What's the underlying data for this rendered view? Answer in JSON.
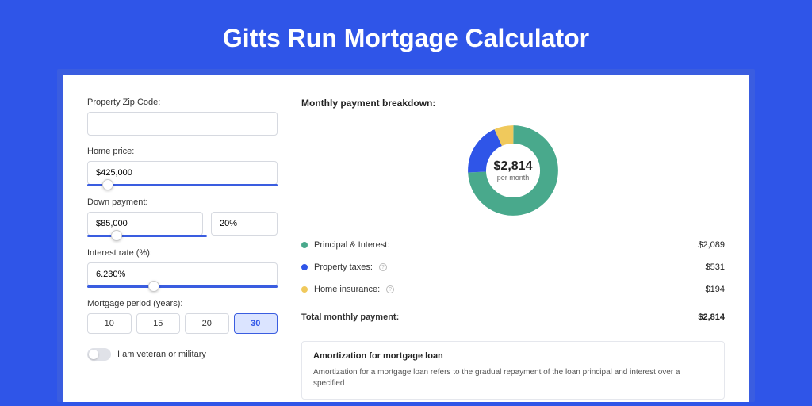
{
  "page": {
    "title": "Gitts Run Mortgage Calculator",
    "background_color": "#2f55e8",
    "shadow_color": "#3a5de0",
    "card_background": "#ffffff"
  },
  "form": {
    "zip": {
      "label": "Property Zip Code:",
      "value": ""
    },
    "home_price": {
      "label": "Home price:",
      "value": "$425,000",
      "slider_pos_pct": 8
    },
    "down_payment": {
      "label": "Down payment:",
      "amount": "$85,000",
      "percent": "20%",
      "slider_pos_pct": 20
    },
    "interest_rate": {
      "label": "Interest rate (%):",
      "value": "6.230%",
      "slider_pos_pct": 32
    },
    "period": {
      "label": "Mortgage period (years):",
      "options": [
        "10",
        "15",
        "20",
        "30"
      ],
      "selected_index": 3
    },
    "veteran": {
      "label": "I am veteran or military",
      "checked": false
    }
  },
  "breakdown": {
    "title": "Monthly payment breakdown:",
    "donut": {
      "center_value": "$2,814",
      "center_sub": "per month",
      "slices": [
        {
          "label": "Principal & Interest",
          "color": "#49a98c",
          "value_pct": 74.2
        },
        {
          "label": "Property taxes",
          "color": "#2f55e8",
          "value_pct": 18.9
        },
        {
          "label": "Home insurance",
          "color": "#f0c95c",
          "value_pct": 6.9
        }
      ]
    },
    "rows": [
      {
        "dot": "#49a98c",
        "label": "Principal & Interest:",
        "info": false,
        "value": "$2,089"
      },
      {
        "dot": "#2f55e8",
        "label": "Property taxes:",
        "info": true,
        "value": "$531"
      },
      {
        "dot": "#f0c95c",
        "label": "Home insurance:",
        "info": true,
        "value": "$194"
      }
    ],
    "total": {
      "label": "Total monthly payment:",
      "value": "$2,814"
    }
  },
  "amortization": {
    "title": "Amortization for mortgage loan",
    "text": "Amortization for a mortgage loan refers to the gradual repayment of the loan principal and interest over a specified"
  }
}
